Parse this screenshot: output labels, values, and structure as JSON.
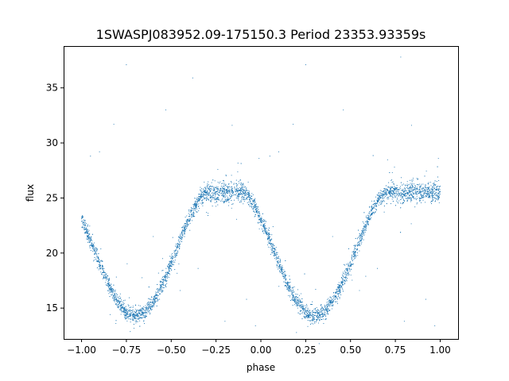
{
  "chart_data": {
    "type": "scatter",
    "title": "1SWASPJ083952.09-175150.3 Period 23353.93359s",
    "xlabel": "phase",
    "ylabel": "flux",
    "xlim": [
      -1.1,
      1.1
    ],
    "ylim": [
      12.2,
      38.8
    ],
    "xticks": [
      -1.0,
      -0.75,
      -0.5,
      -0.25,
      0.0,
      0.25,
      0.5,
      0.75,
      1.0
    ],
    "xtick_labels": [
      "−1.00",
      "−0.75",
      "−0.50",
      "−0.25",
      "0.00",
      "0.25",
      "0.50",
      "0.75",
      "1.00"
    ],
    "yticks": [
      15,
      20,
      25,
      30,
      35
    ],
    "ytick_labels": [
      "15",
      "20",
      "25",
      "30",
      "35"
    ],
    "grid": false,
    "legend": "none",
    "point_color": "#1f77b4",
    "series": [
      {
        "baseline_flux": 25.5,
        "eclipse_min_flux": 14.3,
        "eclipse_centers_phase": [
          -0.7,
          0.3
        ],
        "eclipse_half_width_phase": 0.4,
        "phase_range": [
          -1.0,
          1.0
        ],
        "points": [
          [
            -0.75,
            37.1
          ],
          [
            0.25,
            37.1
          ],
          [
            0.78,
            37.8
          ],
          [
            -0.38,
            35.9
          ],
          [
            -0.53,
            33.0
          ],
          [
            0.46,
            33.0
          ],
          [
            -0.82,
            31.7
          ],
          [
            0.18,
            31.7
          ],
          [
            0.84,
            31.6
          ],
          [
            -0.16,
            31.6
          ],
          [
            -0.95,
            28.8
          ],
          [
            0.05,
            28.8
          ],
          [
            -0.9,
            29.2
          ],
          [
            0.1,
            29.2
          ],
          [
            0.99,
            28.6
          ],
          [
            -0.01,
            28.6
          ],
          [
            -0.6,
            21.5
          ],
          [
            0.4,
            21.5
          ],
          [
            -0.85,
            17.2
          ],
          [
            0.15,
            17.2
          ],
          [
            -0.45,
            16.6
          ],
          [
            0.55,
            16.6
          ],
          [
            -0.65,
            13.6
          ],
          [
            0.35,
            13.6
          ],
          [
            -0.2,
            13.8
          ],
          [
            0.8,
            13.8
          ],
          [
            0.92,
            15.8
          ],
          [
            -0.08,
            15.8
          ],
          [
            0.65,
            18.6
          ],
          [
            -0.35,
            18.6
          ],
          [
            0.97,
            13.4
          ],
          [
            -0.03,
            13.4
          ]
        ]
      }
    ]
  }
}
